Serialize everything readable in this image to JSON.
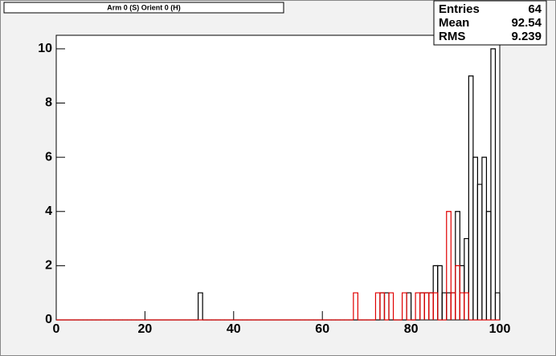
{
  "chart_data": {
    "type": "histogram",
    "title": "Arm 0 (S) Orient 0 (H)",
    "stats": {
      "labels": [
        "Entries",
        "Mean",
        "RMS"
      ],
      "values": [
        "64",
        "92.54",
        "9.239"
      ]
    },
    "bins": [
      0,
      1,
      2,
      3,
      4,
      5,
      6,
      7,
      8,
      9,
      10,
      11,
      12,
      13,
      14,
      15,
      16,
      17,
      18,
      19,
      20,
      21,
      22,
      23,
      24,
      25,
      26,
      27,
      28,
      29,
      30,
      31,
      32,
      33,
      34,
      35,
      36,
      37,
      38,
      39,
      40,
      41,
      42,
      43,
      44,
      45,
      46,
      47,
      48,
      49,
      50,
      51,
      52,
      53,
      54,
      55,
      56,
      57,
      58,
      59,
      60,
      61,
      62,
      63,
      64,
      65,
      66,
      67,
      68,
      69,
      70,
      71,
      72,
      73,
      74,
      75,
      76,
      77,
      78,
      79,
      80,
      81,
      82,
      83,
      84,
      85,
      86,
      87,
      88,
      89,
      90,
      91,
      92,
      93,
      94,
      95,
      96,
      97,
      98,
      99,
      100
    ],
    "series": [
      {
        "color": "#000000",
        "values": [
          0,
          0,
          0,
          0,
          0,
          0,
          0,
          0,
          0,
          0,
          0,
          0,
          0,
          0,
          0,
          0,
          0,
          0,
          0,
          0,
          0,
          0,
          0,
          0,
          0,
          0,
          0,
          0,
          0,
          0,
          0,
          0,
          1,
          0,
          0,
          0,
          0,
          0,
          0,
          0,
          0,
          0,
          0,
          0,
          0,
          0,
          0,
          0,
          0,
          0,
          0,
          0,
          0,
          0,
          0,
          0,
          0,
          0,
          0,
          0,
          0,
          0,
          0,
          0,
          0,
          0,
          0,
          0,
          0,
          0,
          0,
          0,
          0,
          1,
          1,
          0,
          0,
          0,
          0,
          1,
          0,
          0,
          1,
          1,
          1,
          2,
          2,
          1,
          1,
          1,
          4,
          2,
          3,
          9,
          6,
          5,
          6,
          4,
          10,
          1
        ]
      },
      {
        "color": "#e00000",
        "values": [
          0,
          0,
          0,
          0,
          0,
          0,
          0,
          0,
          0,
          0,
          0,
          0,
          0,
          0,
          0,
          0,
          0,
          0,
          0,
          0,
          0,
          0,
          0,
          0,
          0,
          0,
          0,
          0,
          0,
          0,
          0,
          0,
          0,
          0,
          0,
          0,
          0,
          0,
          0,
          0,
          0,
          0,
          0,
          0,
          0,
          0,
          0,
          0,
          0,
          0,
          0,
          0,
          0,
          0,
          0,
          0,
          0,
          0,
          0,
          0,
          0,
          0,
          0,
          0,
          0,
          0,
          0,
          1,
          0,
          0,
          0,
          0,
          1,
          1,
          0,
          1,
          0,
          0,
          1,
          0,
          0,
          1,
          1,
          1,
          1,
          1,
          0,
          0,
          4,
          1,
          2,
          1,
          1,
          0,
          0,
          0,
          0,
          0,
          0,
          0
        ]
      }
    ],
    "xlim": [
      0,
      100
    ],
    "xticks": [
      0,
      20,
      40,
      60,
      80,
      100
    ],
    "ylim": [
      0,
      10.5
    ],
    "yticks": [
      0,
      2,
      4,
      6,
      8,
      10
    ]
  }
}
